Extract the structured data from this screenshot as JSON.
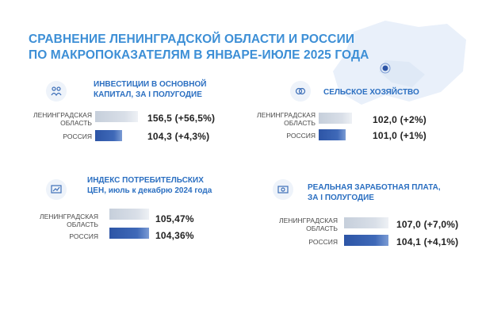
{
  "title_lines": [
    "СРАВНЕНИЕ ЛЕНИНГРАДСКОЙ ОБЛАСТИ И РОССИИ",
    "ПО МАКРОПОКАЗАТЕЛЯМ В ЯНВАРЕ-ИЮЛЕ 2025 ГОДА"
  ],
  "colors": {
    "title": "#3d8fd6",
    "accent": "#2b6fc1",
    "region_bar": "#c6cfdb",
    "russia_bar": "#2d55a6"
  },
  "sections": [
    {
      "icon": "investment-people-icon",
      "title_lines": [
        "ИНВЕСТИЦИИ  В ОСНОВНОЙ",
        "КАПИТАЛ, ЗА I ПОЛУГОДИЕ"
      ],
      "rows": [
        {
          "label_lines": [
            "ЛЕНИНГРАДСКАЯ",
            "ОБЛАСТЬ"
          ],
          "value": "156,5 (+56,5%)"
        },
        {
          "label_lines": [
            "РОССИЯ"
          ],
          "value": "104,3 (+4,3%)"
        }
      ]
    },
    {
      "icon": "agriculture-icon",
      "title_lines": [
        "СЕЛЬСКОЕ ХОЗЯЙСТВО"
      ],
      "rows": [
        {
          "label_lines": [
            "ЛЕНИНГРАДСКАЯ",
            "ОБЛАСТЬ"
          ],
          "value": "102,0 (+2%)"
        },
        {
          "label_lines": [
            "РОССИЯ"
          ],
          "value": "101,0 (+1%)"
        }
      ]
    },
    {
      "icon": "price-index-icon",
      "title_lines": [
        "ИНДЕКС ПОТРЕБИТЕЛЬСКИХ",
        "ЦЕН, июль к декабрю 2024 года"
      ],
      "rows": [
        {
          "label_lines": [
            "ЛЕНИНГРАДСКАЯ",
            "ОБЛАСТЬ"
          ],
          "value": "105,47%"
        },
        {
          "label_lines": [
            "РОССИЯ"
          ],
          "value": "104,36%"
        }
      ]
    },
    {
      "icon": "salary-icon",
      "title_lines": [
        "РЕАЛЬНАЯ ЗАРАБОТНАЯ ПЛАТА,",
        "ЗА I ПОЛУГОДИЕ"
      ],
      "rows": [
        {
          "label_lines": [
            "ЛЕНИНГРАДСКАЯ",
            "ОБЛАСТЬ"
          ],
          "value": "107,0 (+7,0%)"
        },
        {
          "label_lines": [
            "РОССИЯ"
          ],
          "value": "104,1 (+4,1%)"
        }
      ]
    }
  ]
}
